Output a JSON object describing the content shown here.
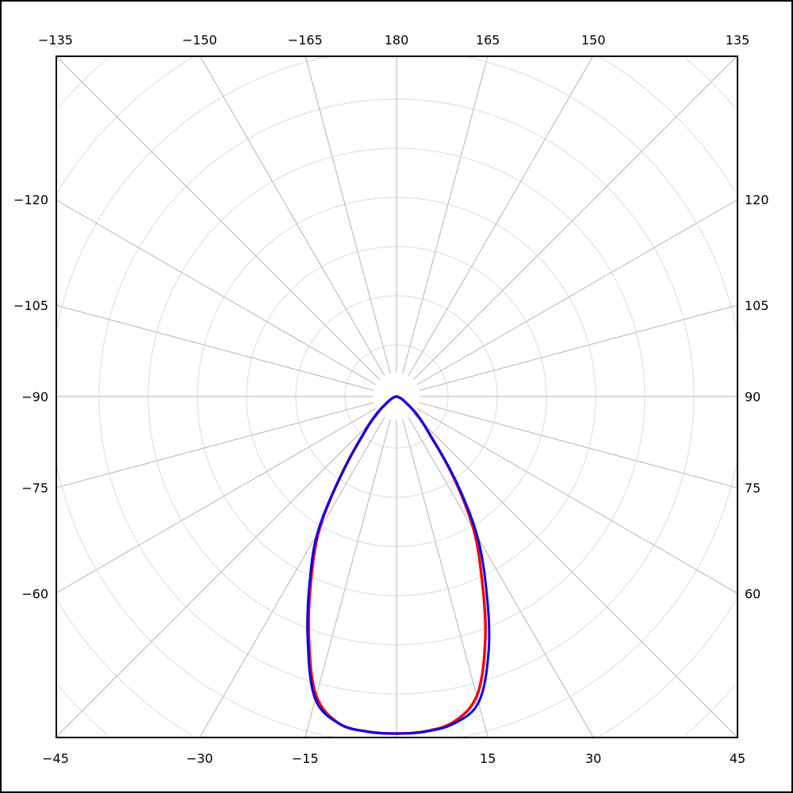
{
  "chart_data": {
    "type": "line",
    "projection": "polar",
    "angle_zero": "bottom",
    "angle_direction": "positive to the right (clockwise from bottom on the right side)",
    "angle_ticks": [
      {
        "angle": -135,
        "label": "-135"
      },
      {
        "angle": -150,
        "label": "-150"
      },
      {
        "angle": -165,
        "label": "-165"
      },
      {
        "angle": 180,
        "label": "180"
      },
      {
        "angle": 165,
        "label": "165"
      },
      {
        "angle": 150,
        "label": "150"
      },
      {
        "angle": 135,
        "label": "135"
      },
      {
        "angle": -120,
        "label": "-120"
      },
      {
        "angle": -105,
        "label": "-105"
      },
      {
        "angle": -90,
        "label": "-90"
      },
      {
        "angle": -75,
        "label": "-75"
      },
      {
        "angle": -60,
        "label": "-60"
      },
      {
        "angle": 120,
        "label": "120"
      },
      {
        "angle": 105,
        "label": "105"
      },
      {
        "angle": 90,
        "label": "90"
      },
      {
        "angle": 75,
        "label": "75"
      },
      {
        "angle": 60,
        "label": "60"
      },
      {
        "angle": -45,
        "label": "-45"
      },
      {
        "angle": -30,
        "label": "-30"
      },
      {
        "angle": -15,
        "label": "-15"
      },
      {
        "angle": 15,
        "label": "15"
      },
      {
        "angle": 30,
        "label": "30"
      },
      {
        "angle": 45,
        "label": "45"
      }
    ],
    "radial_grid": "concentric circles, unlabeled",
    "radial_range": [
      0,
      1.43
    ],
    "grid": true,
    "colors": {
      "radial_lines": "#c0c0c0",
      "circles": "#cfe6ee",
      "series_1": "#ff0000",
      "series_2": "#0000ff"
    },
    "angles": [
      -90,
      -80,
      -70,
      -60,
      -55,
      -50,
      -45,
      -40,
      -35,
      -30,
      -25,
      -20,
      -15,
      -10,
      -5,
      0,
      5,
      10,
      15,
      20,
      25,
      30,
      35,
      40,
      45,
      50,
      55,
      60,
      70,
      80,
      90
    ],
    "series": [
      {
        "color": "#ff0000",
        "values": [
          0,
          0.003,
          0.01,
          0.025,
          0.04,
          0.07,
          0.11,
          0.17,
          0.29,
          0.46,
          0.6,
          0.76,
          0.92,
          0.985,
          0.998,
          1.0,
          0.997,
          0.98,
          0.92,
          0.77,
          0.6,
          0.46,
          0.3,
          0.17,
          0.11,
          0.07,
          0.04,
          0.025,
          0.01,
          0.003,
          0
        ]
      },
      {
        "color": "#0000ff",
        "values": [
          0,
          0.003,
          0.01,
          0.025,
          0.04,
          0.07,
          0.11,
          0.17,
          0.29,
          0.47,
          0.61,
          0.77,
          0.93,
          0.985,
          0.998,
          1.0,
          0.998,
          0.985,
          0.94,
          0.8,
          0.63,
          0.48,
          0.31,
          0.17,
          0.11,
          0.07,
          0.04,
          0.025,
          0.01,
          0.003,
          0
        ]
      }
    ]
  }
}
